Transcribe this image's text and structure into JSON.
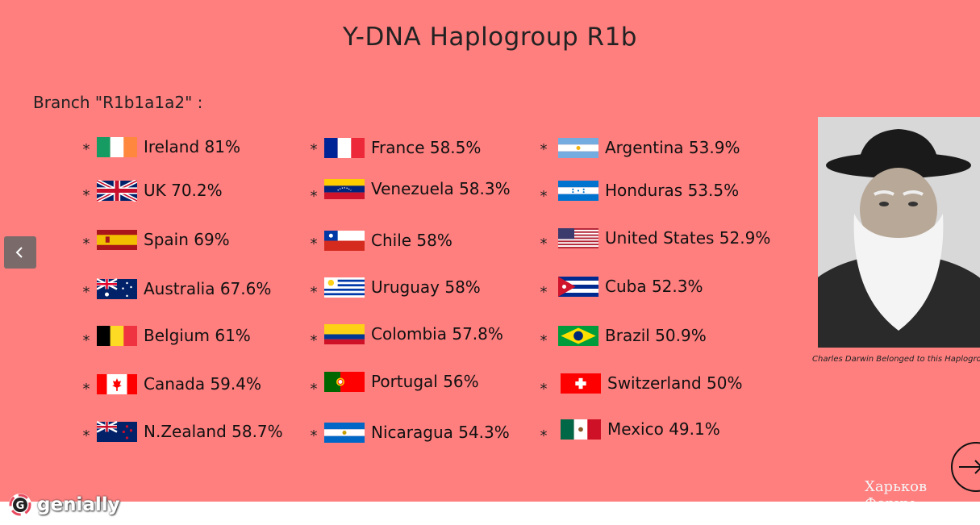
{
  "slide": {
    "title": "Y-DNA Haplogroup R1b",
    "branch_label": "Branch \"R1b1a1a2\" :",
    "bullet_char": "*",
    "countries": [
      {
        "label": "Ireland 81%",
        "flag": "ireland-flag"
      },
      {
        "label": "UK 70.2%",
        "flag": "uk-flag"
      },
      {
        "label": "Spain 69%",
        "flag": "spain-flag"
      },
      {
        "label": "Australia 67.6%",
        "flag": "australia-flag"
      },
      {
        "label": "Belgium 61%",
        "flag": "belgium-flag"
      },
      {
        "label": "Canada 59.4%",
        "flag": "canada-flag"
      },
      {
        "label": "N.Zealand 58.7%",
        "flag": "new-zealand-flag"
      },
      {
        "label": "France 58.5%",
        "flag": "france-flag"
      },
      {
        "label": "Venezuela 58.3%",
        "flag": "venezuela-flag"
      },
      {
        "label": "Chile 58%",
        "flag": "chile-flag"
      },
      {
        "label": "Uruguay 58%",
        "flag": "uruguay-flag"
      },
      {
        "label": "Colombia 57.8%",
        "flag": "colombia-flag"
      },
      {
        "label": "Portugal 56%",
        "flag": "portugal-flag"
      },
      {
        "label": "Nicaragua 54.3%",
        "flag": "nicaragua-flag"
      },
      {
        "label": "Argentina 53.9%",
        "flag": "argentina-flag"
      },
      {
        "label": "Honduras 53.5%",
        "flag": "honduras-flag"
      },
      {
        "label": "United States 52.9%",
        "flag": "united-states-flag"
      },
      {
        "label": "Cuba 52.3%",
        "flag": "cuba-flag"
      },
      {
        "label": "Brazil 50.9%",
        "flag": "brazil-flag"
      },
      {
        "label": "Switzerland 50%",
        "flag": "switzerland-flag"
      },
      {
        "label": "Mexico 49.1%",
        "flag": "mexico-flag"
      }
    ],
    "photo_caption": "Charles Darwin Belonged to this Haplogroup",
    "watermark": "Харьков Форум"
  },
  "colors": {
    "slide_background": "#ff7e7e",
    "page_background": "#ffffff",
    "title_text": "#222222"
  },
  "nav": {
    "prev_icon": "chevron-left-icon",
    "next_icon": "arrow-right-icon"
  },
  "brand": {
    "name": "genially",
    "logo_icon": "genially-logo-icon"
  }
}
